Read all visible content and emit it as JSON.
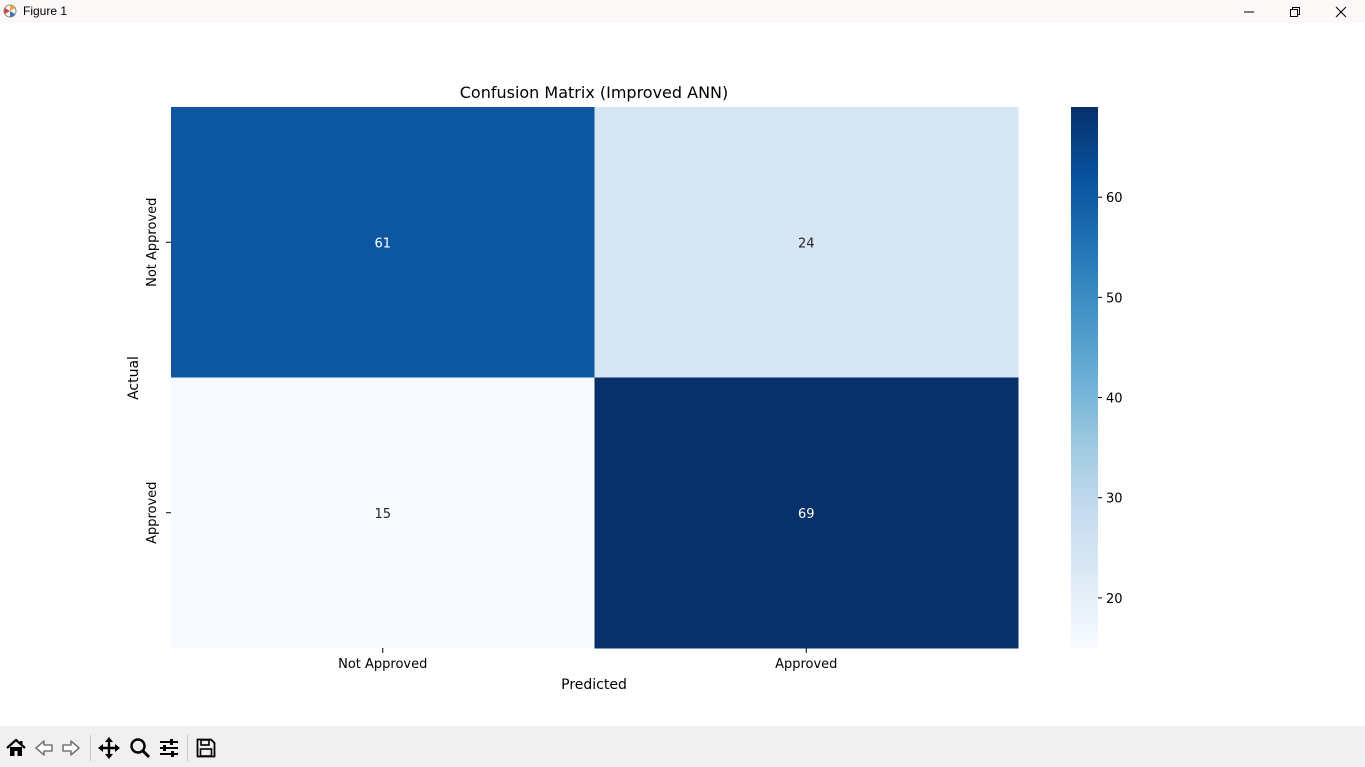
{
  "window": {
    "title": "Figure 1"
  },
  "toolbar": {
    "buttons": [
      {
        "name": "home-icon"
      },
      {
        "name": "back-arrow-icon"
      },
      {
        "name": "forward-arrow-icon"
      },
      {
        "name": "pan-icon"
      },
      {
        "name": "zoom-icon"
      },
      {
        "name": "configure-subplots-icon"
      },
      {
        "name": "save-icon"
      }
    ]
  },
  "chart_data": {
    "type": "heatmap",
    "title": "Confusion Matrix (Improved ANN)",
    "xlabel": "Predicted",
    "ylabel": "Actual",
    "x_categories": [
      "Not Approved",
      "Approved"
    ],
    "y_categories": [
      "Not Approved",
      "Approved"
    ],
    "values": [
      [
        61,
        24
      ],
      [
        15,
        69
      ]
    ],
    "colormap": "Blues",
    "colorbar": {
      "min": 15,
      "max": 69,
      "ticks": [
        20,
        30,
        40,
        50,
        60
      ]
    },
    "annotations": true
  }
}
